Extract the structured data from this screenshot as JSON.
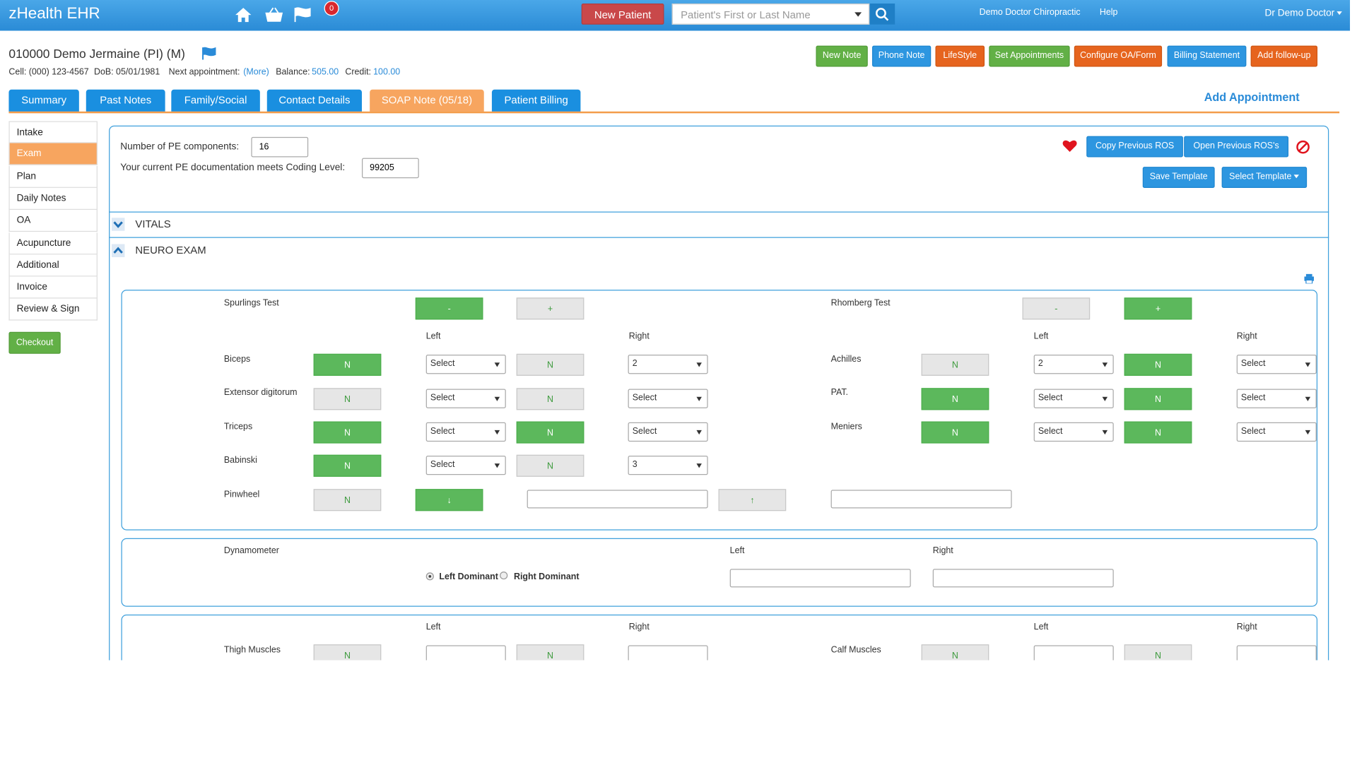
{
  "header": {
    "brand": "zHealth EHR",
    "notification_count": "0",
    "new_patient": "New Patient",
    "search_placeholder": "Patient's First or Last Name",
    "clinic": "Demo Doctor Chiropractic",
    "help": "Help",
    "user": "Dr Demo Doctor"
  },
  "patient": {
    "name": "010000 Demo Jermaine  (PI) (M)",
    "cell": "Cell: (000) 123-4567",
    "dob": "DoB: 05/01/1981",
    "next_appointment_label": "Next appointment:",
    "next_appointment": "(More)",
    "balance_label": "Balance:",
    "balance": "505.00",
    "credit_label": "Credit:",
    "credit": "100.00"
  },
  "actions": [
    "New Note",
    "Phone Note",
    "LifeStyle",
    "Set Appointments",
    "Configure OA/Form",
    "Billing Statement",
    "Add follow-up"
  ],
  "tabs": [
    "Summary",
    "Past Notes",
    "Family/Social",
    "Contact Details",
    "SOAP Note (05/18)",
    "Patient Billing"
  ],
  "add_appointment": "Add Appointment",
  "sidebar": [
    "Intake",
    "Exam",
    "Plan",
    "Daily Notes",
    "OA",
    "Acupuncture",
    "Additional",
    "Invoice",
    "Review & Sign"
  ],
  "checkout": "Checkout",
  "exam": {
    "pe_components_label": "Number of PE components:",
    "pe_components": "16",
    "coding_label": "Your current PE documentation meets Coding Level:",
    "coding_level": "99205",
    "copy_ros": "Copy Previous ROS",
    "open_ros": "Open Previous ROS's",
    "save_template": "Save Template",
    "select_template": "Select Template"
  },
  "sections": [
    "VITALS",
    "NEURO EXAM"
  ],
  "neuro_exam": {
    "panel1": {
      "headers": [
        "Left",
        "Right",
        "Left",
        "Right"
      ],
      "left_tests": [
        {
          "label": "Spurlings Test",
          "controls": [
            "-",
            "+"
          ]
        },
        {
          "label": "Biceps",
          "controls": [
            "N",
            "Select",
            "N",
            "2"
          ]
        },
        {
          "label": "Extensor digitorum",
          "controls": [
            "N",
            "Select",
            "N",
            "Select"
          ]
        },
        {
          "label": "Triceps",
          "controls": [
            "N",
            "Select",
            "N",
            "Select"
          ]
        },
        {
          "label": "Babinski",
          "controls": [
            "N",
            "Select",
            "N",
            "3"
          ]
        },
        {
          "label": "Pinwheel",
          "controls": [
            "N",
            "↓",
            "↑"
          ]
        }
      ],
      "right_tests": [
        {
          "label": "Rhomberg Test",
          "controls": [
            "-",
            "+"
          ]
        },
        {
          "label": "Achilles",
          "controls": [
            "N",
            "2",
            "N",
            "Select"
          ]
        },
        {
          "label": "PAT.",
          "controls": [
            "N",
            "Select",
            "N",
            "Select"
          ]
        },
        {
          "label": "Meniers",
          "controls": [
            "N",
            "Select",
            "N",
            "Select"
          ]
        }
      ]
    },
    "dynamometer": {
      "label": "Dynamometer",
      "headers": [
        "Left",
        "Right"
      ],
      "options": [
        "Left Dominant",
        "Right Dominant"
      ]
    },
    "muscles": {
      "headers": [
        "Left",
        "Right",
        "Left",
        "Right"
      ],
      "tests": [
        {
          "label": "Thigh Muscles",
          "controls": [
            "N",
            "N"
          ]
        },
        {
          "label": "Calf Muscles",
          "controls": [
            "N",
            "N"
          ]
        }
      ]
    }
  }
}
